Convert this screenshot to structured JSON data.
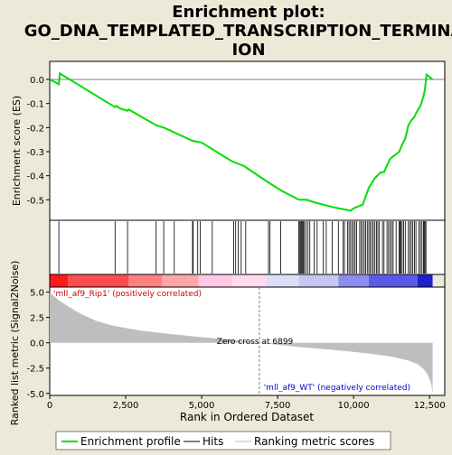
{
  "title_line1": "Enrichment plot:",
  "title_line2": "GO_DNA_TEMPLATED_TRANSCRIPTION_TERMINAT",
  "title_line3": "ION",
  "colors": {
    "background": "#ece9d8",
    "enrichment_line": "#00dd00",
    "hits": "#000000",
    "ranking_fill": "#bebebe",
    "zero_cross_line": "#808080"
  },
  "chart_data": [
    {
      "type": "line",
      "name": "enrichment-profile",
      "ylabel": "Enrichment score (ES)",
      "xlim": [
        0,
        13000
      ],
      "ylim": [
        -0.585,
        0.075
      ],
      "yticks": [
        0.0,
        -0.1,
        -0.2,
        -0.3,
        -0.4,
        -0.5
      ],
      "ytick_labels": [
        "0.0",
        "-0.1",
        "-0.2",
        "-0.3",
        "-0.4",
        "-0.5"
      ],
      "x": [
        0,
        300,
        330,
        2150,
        2200,
        2300,
        2560,
        2600,
        3500,
        3750,
        4100,
        4700,
        4900,
        5000,
        6000,
        6400,
        7100,
        7600,
        8200,
        8450,
        8700,
        9000,
        9300,
        9700,
        9900,
        10000,
        10300,
        10500,
        10700,
        10900,
        11000,
        11200,
        11300,
        11500,
        11600,
        11700,
        11750,
        11800,
        11900,
        12000,
        12100,
        12200,
        12300,
        12350,
        12400,
        12500,
        12600
      ],
      "y": [
        0.0,
        -0.02,
        0.025,
        -0.115,
        -0.11,
        -0.12,
        -0.13,
        -0.125,
        -0.19,
        -0.2,
        -0.22,
        -0.255,
        -0.26,
        -0.262,
        -0.34,
        -0.36,
        -0.42,
        -0.46,
        -0.5,
        -0.5,
        -0.51,
        -0.52,
        -0.53,
        -0.54,
        -0.545,
        -0.535,
        -0.52,
        -0.45,
        -0.41,
        -0.385,
        -0.385,
        -0.33,
        -0.32,
        -0.3,
        -0.27,
        -0.245,
        -0.22,
        -0.19,
        -0.17,
        -0.155,
        -0.13,
        -0.11,
        -0.07,
        -0.04,
        0.02,
        0.01,
        0.0
      ]
    },
    {
      "type": "scatter",
      "name": "hits",
      "hit_positions": [
        300,
        2150,
        2560,
        3500,
        3750,
        4100,
        4700,
        4720,
        4870,
        4950,
        5350,
        6050,
        6120,
        6200,
        6300,
        6450,
        7200,
        7250,
        7600,
        8200,
        8230,
        8260,
        8290,
        8320,
        8350,
        8380,
        8430,
        8500,
        8560,
        8700,
        8800,
        9000,
        9100,
        9300,
        9500,
        9650,
        9700,
        9800,
        9850,
        9900,
        9950,
        10000,
        10050,
        10100,
        10200,
        10250,
        10300,
        10350,
        10400,
        10450,
        10500,
        10550,
        10600,
        10650,
        10700,
        10750,
        10800,
        10850,
        10950,
        11000,
        11100,
        11150,
        11200,
        11250,
        11300,
        11400,
        11500,
        11530,
        11560,
        11600,
        11650,
        11700,
        11800,
        11850,
        11900,
        11950,
        12000,
        12050,
        12150,
        12200,
        12250,
        12300,
        12320,
        12350,
        12380
      ]
    },
    {
      "type": "area",
      "name": "ranking-metric",
      "ylabel": "Ranked list metric (Signal2Noise)",
      "xlabel": "Rank in Ordered Dataset",
      "xlim": [
        0,
        13000
      ],
      "ylim": [
        -5.2,
        5.5
      ],
      "xticks": [
        0,
        2500,
        5000,
        7500,
        10000,
        12500
      ],
      "xtick_labels": [
        "0",
        "2,500",
        "5,000",
        "7,500",
        "10,000",
        "12,500"
      ],
      "yticks": [
        5.0,
        2.5,
        0.0,
        -2.5,
        -5.0
      ],
      "ytick_labels": [
        "5.0",
        "2.5",
        "0.0",
        "-2.5",
        "-5.0"
      ],
      "x": [
        0,
        100,
        300,
        600,
        1000,
        1500,
        2000,
        2500,
        3000,
        4000,
        5000,
        6000,
        6899,
        7500,
        8500,
        9500,
        10500,
        11200,
        11800,
        12100,
        12300,
        12450,
        12550,
        12600
      ],
      "values": [
        5.0,
        4.7,
        4.2,
        3.6,
        2.9,
        2.2,
        1.75,
        1.45,
        1.2,
        0.85,
        0.55,
        0.3,
        0.0,
        -0.2,
        -0.5,
        -0.75,
        -1.05,
        -1.35,
        -1.75,
        -2.1,
        -2.6,
        -3.2,
        -4.0,
        -5.0
      ],
      "zero_cross_rank": 6899,
      "zero_cross_label": "Zero cross at 6899",
      "pos_label": "'mll_af9_Rip1' (positively correlated)",
      "neg_label": "'mll_af9_WT' (negatively correlated)"
    }
  ],
  "legend": {
    "placement": "bottom",
    "items": [
      {
        "label": "Enrichment profile",
        "color": "#00dd00",
        "style": "thick-line"
      },
      {
        "label": "Hits",
        "color": "#000000",
        "style": "line"
      },
      {
        "label": "Ranking metric scores",
        "color": "#bebebe",
        "style": "thin-line"
      }
    ]
  }
}
